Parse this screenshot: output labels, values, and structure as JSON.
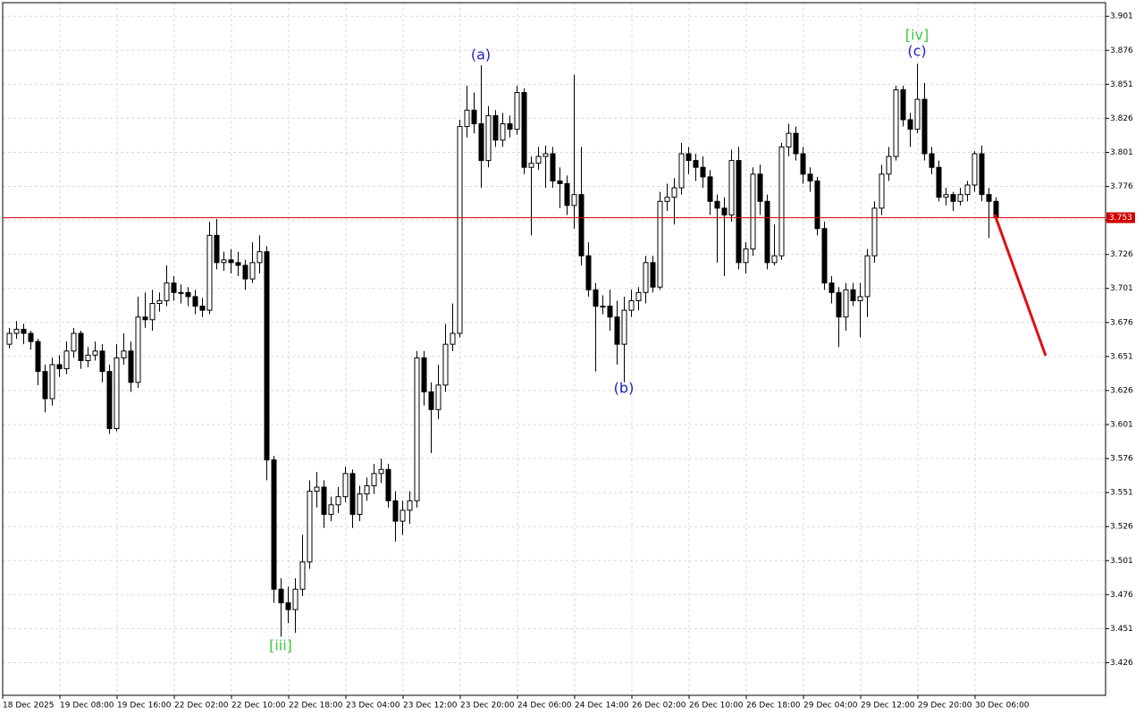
{
  "chart_data": {
    "type": "candlestick",
    "ylim": [
      3.402,
      3.911
    ],
    "yticks": [
      3.426,
      3.451,
      3.476,
      3.501,
      3.526,
      3.551,
      3.576,
      3.601,
      3.626,
      3.651,
      3.676,
      3.701,
      3.726,
      3.751,
      3.776,
      3.801,
      3.826,
      3.851,
      3.876,
      3.901
    ],
    "grid": true,
    "bull_color": "#ffffff",
    "bear_color": "#000000",
    "price_line_color": "#d40000",
    "current_price": 3.753,
    "x_labels": [
      "18 Dec 2025",
      "19 Dec 08:00",
      "19 Dec 16:00",
      "22 Dec 02:00",
      "22 Dec 10:00",
      "22 Dec 18:00",
      "23 Dec 04:00",
      "23 Dec 12:00",
      "23 Dec 20:00",
      "24 Dec 06:00",
      "24 Dec 14:00",
      "26 Dec 02:00",
      "26 Dec 10:00",
      "26 Dec 18:00",
      "29 Dec 04:00",
      "29 Dec 12:00",
      "29 Dec 20:00",
      "30 Dec 06:00"
    ],
    "annotations": [
      "(a)",
      "(b)",
      "(c)",
      "[iii]",
      "[iv]"
    ],
    "candles": [
      [
        3.66,
        3.672,
        3.657,
        3.668
      ],
      [
        3.668,
        3.677,
        3.664,
        3.671
      ],
      [
        3.671,
        3.675,
        3.66,
        3.668
      ],
      [
        3.668,
        3.67,
        3.656,
        3.662
      ],
      [
        3.662,
        3.664,
        3.63,
        3.64
      ],
      [
        3.64,
        3.645,
        3.61,
        3.62
      ],
      [
        3.62,
        3.65,
        3.615,
        3.645
      ],
      [
        3.645,
        3.652,
        3.636,
        3.642
      ],
      [
        3.642,
        3.662,
        3.638,
        3.655
      ],
      [
        3.655,
        3.672,
        3.65,
        3.668
      ],
      [
        3.668,
        3.67,
        3.642,
        3.648
      ],
      [
        3.648,
        3.658,
        3.643,
        3.652
      ],
      [
        3.652,
        3.662,
        3.648,
        3.655
      ],
      [
        3.655,
        3.66,
        3.632,
        3.64
      ],
      [
        3.64,
        3.645,
        3.594,
        3.598
      ],
      [
        3.598,
        3.66,
        3.596,
        3.65
      ],
      [
        3.65,
        3.668,
        3.645,
        3.655
      ],
      [
        3.655,
        3.662,
        3.625,
        3.632
      ],
      [
        3.632,
        3.695,
        3.628,
        3.68
      ],
      [
        3.68,
        3.698,
        3.672,
        3.678
      ],
      [
        3.678,
        3.7,
        3.67,
        3.69
      ],
      [
        3.69,
        3.698,
        3.684,
        3.692
      ],
      [
        3.692,
        3.718,
        3.688,
        3.705
      ],
      [
        3.705,
        3.71,
        3.692,
        3.698
      ],
      [
        3.698,
        3.704,
        3.69,
        3.698
      ],
      [
        3.698,
        3.702,
        3.688,
        3.695
      ],
      [
        3.695,
        3.7,
        3.682,
        3.688
      ],
      [
        3.688,
        3.694,
        3.68,
        3.685
      ],
      [
        3.685,
        3.75,
        3.682,
        3.74
      ],
      [
        3.74,
        3.752,
        3.715,
        3.72
      ],
      [
        3.72,
        3.728,
        3.714,
        3.722
      ],
      [
        3.722,
        3.73,
        3.712,
        3.72
      ],
      [
        3.72,
        3.728,
        3.71,
        3.718
      ],
      [
        3.718,
        3.722,
        3.7,
        3.708
      ],
      [
        3.708,
        3.735,
        3.705,
        3.72
      ],
      [
        3.72,
        3.74,
        3.712,
        3.728
      ],
      [
        3.728,
        3.732,
        3.56,
        3.575
      ],
      [
        3.575,
        3.578,
        3.47,
        3.48
      ],
      [
        3.48,
        3.488,
        3.445,
        3.47
      ],
      [
        3.47,
        3.482,
        3.455,
        3.465
      ],
      [
        3.465,
        3.488,
        3.448,
        3.48
      ],
      [
        3.48,
        3.52,
        3.475,
        3.5
      ],
      [
        3.5,
        3.56,
        3.495,
        3.552
      ],
      [
        3.552,
        3.566,
        3.54,
        3.555
      ],
      [
        3.555,
        3.56,
        3.525,
        3.535
      ],
      [
        3.535,
        3.548,
        3.53,
        3.542
      ],
      [
        3.542,
        3.555,
        3.536,
        3.548
      ],
      [
        3.548,
        3.57,
        3.544,
        3.565
      ],
      [
        3.565,
        3.568,
        3.525,
        3.535
      ],
      [
        3.535,
        3.556,
        3.53,
        3.55
      ],
      [
        3.55,
        3.562,
        3.545,
        3.556
      ],
      [
        3.556,
        3.572,
        3.55,
        3.565
      ],
      [
        3.565,
        3.576,
        3.558,
        3.568
      ],
      [
        3.568,
        3.572,
        3.54,
        3.545
      ],
      [
        3.545,
        3.552,
        3.515,
        3.53
      ],
      [
        3.53,
        3.545,
        3.52,
        3.538
      ],
      [
        3.538,
        3.552,
        3.528,
        3.545
      ],
      [
        3.545,
        3.655,
        3.54,
        3.65
      ],
      [
        3.65,
        3.655,
        3.615,
        3.625
      ],
      [
        3.625,
        3.632,
        3.58,
        3.612
      ],
      [
        3.612,
        3.645,
        3.605,
        3.63
      ],
      [
        3.63,
        3.675,
        3.625,
        3.66
      ],
      [
        3.66,
        3.69,
        3.655,
        3.668
      ],
      [
        3.668,
        3.825,
        3.665,
        3.82
      ],
      [
        3.82,
        3.85,
        3.812,
        3.832
      ],
      [
        3.832,
        3.845,
        3.815,
        3.822
      ],
      [
        3.822,
        3.865,
        3.775,
        3.795
      ],
      [
        3.795,
        3.835,
        3.79,
        3.828
      ],
      [
        3.828,
        3.832,
        3.805,
        3.81
      ],
      [
        3.81,
        3.83,
        3.805,
        3.822
      ],
      [
        3.822,
        3.828,
        3.812,
        3.818
      ],
      [
        3.818,
        3.85,
        3.814,
        3.845
      ],
      [
        3.845,
        3.848,
        3.785,
        3.79
      ],
      [
        3.79,
        3.798,
        3.74,
        3.793
      ],
      [
        3.793,
        3.805,
        3.788,
        3.798
      ],
      [
        3.798,
        3.806,
        3.775,
        3.8
      ],
      [
        3.8,
        3.805,
        3.775,
        3.78
      ],
      [
        3.78,
        3.79,
        3.76,
        3.778
      ],
      [
        3.778,
        3.784,
        3.755,
        3.762
      ],
      [
        3.762,
        3.858,
        3.745,
        3.77
      ],
      [
        3.77,
        3.805,
        3.718,
        3.725
      ],
      [
        3.725,
        3.735,
        3.695,
        3.7
      ],
      [
        3.7,
        3.705,
        3.64,
        3.688
      ],
      [
        3.688,
        3.696,
        3.682,
        3.688
      ],
      [
        3.688,
        3.7,
        3.67,
        3.68
      ],
      [
        3.68,
        3.692,
        3.645,
        3.66
      ],
      [
        3.66,
        3.695,
        3.632,
        3.685
      ],
      [
        3.685,
        3.7,
        3.68,
        3.692
      ],
      [
        3.692,
        3.702,
        3.685,
        3.698
      ],
      [
        3.698,
        3.725,
        3.69,
        3.72
      ],
      [
        3.72,
        3.725,
        3.698,
        3.702
      ],
      [
        3.702,
        3.772,
        3.7,
        3.765
      ],
      [
        3.765,
        3.778,
        3.758,
        3.768
      ],
      [
        3.768,
        3.782,
        3.748,
        3.775
      ],
      [
        3.775,
        3.808,
        3.77,
        3.8
      ],
      [
        3.8,
        3.805,
        3.785,
        3.795
      ],
      [
        3.795,
        3.8,
        3.78,
        3.79
      ],
      [
        3.79,
        3.798,
        3.775,
        3.783
      ],
      [
        3.783,
        3.788,
        3.755,
        3.765
      ],
      [
        3.765,
        3.77,
        3.72,
        3.76
      ],
      [
        3.76,
        3.768,
        3.71,
        3.755
      ],
      [
        3.755,
        3.803,
        3.75,
        3.795
      ],
      [
        3.795,
        3.805,
        3.715,
        3.72
      ],
      [
        3.72,
        3.735,
        3.712,
        3.73
      ],
      [
        3.73,
        3.79,
        3.725,
        3.785
      ],
      [
        3.785,
        3.792,
        3.755,
        3.765
      ],
      [
        3.765,
        3.77,
        3.715,
        3.72
      ],
      [
        3.72,
        3.748,
        3.718,
        3.725
      ],
      [
        3.725,
        3.808,
        3.722,
        3.805
      ],
      [
        3.805,
        3.822,
        3.798,
        3.815
      ],
      [
        3.815,
        3.82,
        3.795,
        3.8
      ],
      [
        3.8,
        3.805,
        3.778,
        3.785
      ],
      [
        3.785,
        3.79,
        3.772,
        3.78
      ],
      [
        3.78,
        3.783,
        3.74,
        3.745
      ],
      [
        3.745,
        3.75,
        3.7,
        3.705
      ],
      [
        3.705,
        3.71,
        3.69,
        3.698
      ],
      [
        3.698,
        3.702,
        3.658,
        3.68
      ],
      [
        3.68,
        3.705,
        3.67,
        3.7
      ],
      [
        3.7,
        3.705,
        3.688,
        3.692
      ],
      [
        3.692,
        3.705,
        3.665,
        3.695
      ],
      [
        3.695,
        3.73,
        3.68,
        3.725
      ],
      [
        3.725,
        3.765,
        3.72,
        3.76
      ],
      [
        3.76,
        3.792,
        3.755,
        3.785
      ],
      [
        3.785,
        3.805,
        3.78,
        3.798
      ],
      [
        3.798,
        3.85,
        3.795,
        3.847
      ],
      [
        3.847,
        3.85,
        3.82,
        3.825
      ],
      [
        3.825,
        3.83,
        3.805,
        3.818
      ],
      [
        3.818,
        3.866,
        3.815,
        3.84
      ],
      [
        3.84,
        3.852,
        3.795,
        3.8
      ],
      [
        3.8,
        3.805,
        3.785,
        3.79
      ],
      [
        3.79,
        3.795,
        3.765,
        3.768
      ],
      [
        3.768,
        3.775,
        3.762,
        3.77
      ],
      [
        3.77,
        3.772,
        3.758,
        3.765
      ],
      [
        3.765,
        3.775,
        3.762,
        3.77
      ],
      [
        3.77,
        3.78,
        3.765,
        3.777
      ],
      [
        3.777,
        3.802,
        3.772,
        3.8
      ],
      [
        3.8,
        3.806,
        3.765,
        3.77
      ],
      [
        3.77,
        3.775,
        3.738,
        3.765
      ],
      [
        3.765,
        3.768,
        3.75,
        3.753
      ]
    ]
  }
}
